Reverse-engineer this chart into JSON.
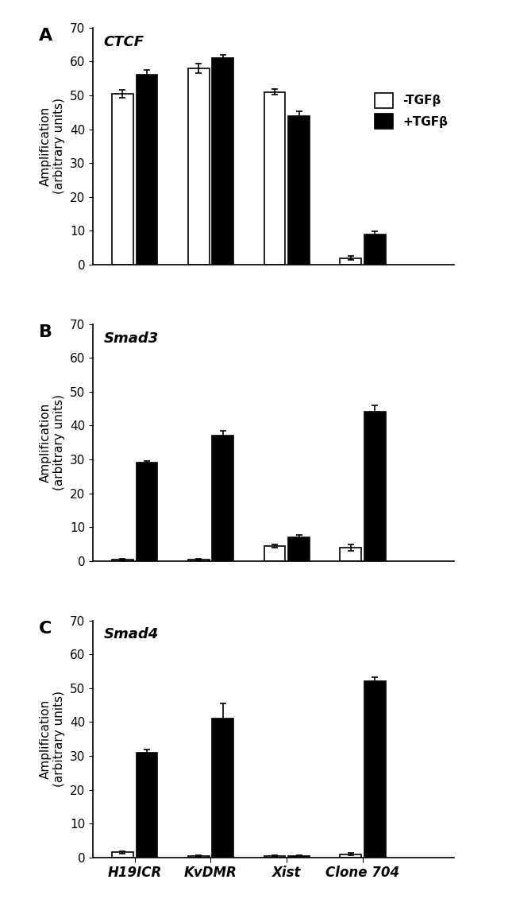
{
  "panels": [
    {
      "label": "A",
      "title": "CTCF",
      "ylim": [
        0,
        70
      ],
      "yticks": [
        0,
        10,
        20,
        30,
        40,
        50,
        60,
        70
      ],
      "categories": [
        "H19ICR",
        "KvDMR",
        "Xist",
        "Clone 704"
      ],
      "white_vals": [
        50.5,
        58.0,
        51.0,
        2.0
      ],
      "black_vals": [
        56.0,
        61.0,
        44.0,
        9.0
      ],
      "white_errs": [
        1.2,
        1.5,
        0.8,
        0.5
      ],
      "black_errs": [
        1.5,
        1.0,
        1.2,
        0.8
      ],
      "show_legend": true
    },
    {
      "label": "B",
      "title": "Smad3",
      "ylim": [
        0,
        70
      ],
      "yticks": [
        0,
        10,
        20,
        30,
        40,
        50,
        60,
        70
      ],
      "categories": [
        "H19ICR",
        "KvDMR",
        "Xist",
        "Clone 704"
      ],
      "white_vals": [
        0.5,
        0.5,
        4.5,
        4.0
      ],
      "black_vals": [
        29.0,
        37.0,
        7.0,
        44.0
      ],
      "white_errs": [
        0.2,
        0.2,
        0.5,
        1.0
      ],
      "black_errs": [
        0.5,
        1.5,
        0.7,
        2.0
      ],
      "show_legend": false
    },
    {
      "label": "C",
      "title": "Smad4",
      "ylim": [
        0,
        70
      ],
      "yticks": [
        0,
        10,
        20,
        30,
        40,
        50,
        60,
        70
      ],
      "categories": [
        "H19ICR",
        "KvDMR",
        "Xist",
        "Clone 704"
      ],
      "white_vals": [
        1.5,
        0.5,
        0.5,
        1.0
      ],
      "black_vals": [
        31.0,
        41.0,
        0.5,
        52.0
      ],
      "white_errs": [
        0.4,
        0.2,
        0.2,
        0.3
      ],
      "black_errs": [
        0.8,
        4.5,
        0.2,
        1.2
      ],
      "show_legend": false
    }
  ],
  "ylabel": "Amplification\n(arbitrary units)",
  "bar_width": 0.28,
  "bar_gap": 0.04,
  "group_centers": [
    1.0,
    2.0,
    3.0,
    4.0
  ],
  "xlim": [
    0.45,
    5.2
  ],
  "legend_labels": [
    "-TGFβ",
    "+TGFβ"
  ],
  "white_color": "#ffffff",
  "black_color": "#000000",
  "edge_color": "#000000",
  "tick_fontsize": 11,
  "title_fontsize": 13,
  "ylabel_fontsize": 11,
  "cat_label_fontsize": 12,
  "panel_label_fontsize": 16
}
